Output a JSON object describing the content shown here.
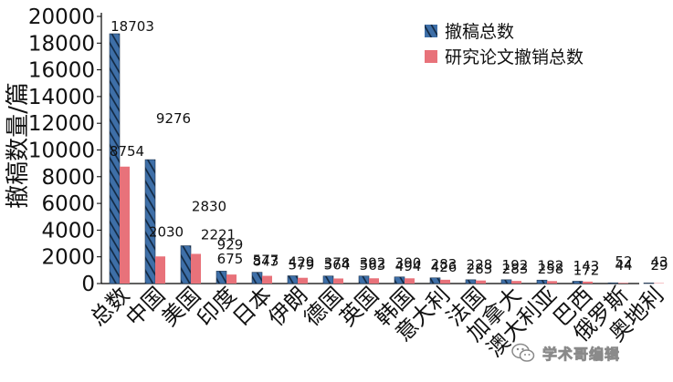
{
  "chart_data": {
    "type": "bar",
    "ylabel": "撤稿数量/篇",
    "ylim": [
      0,
      20000
    ],
    "yticks": [
      "0",
      "2000",
      "4000",
      "6000",
      "8000",
      "10000",
      "12000",
      "14000",
      "16000",
      "18000",
      "20000"
    ],
    "categories": [
      "总数",
      "中国",
      "美国",
      "印度",
      "日本",
      "伊朗",
      "德国",
      "英国",
      "韩国",
      "意大利",
      "法国",
      "加拿大",
      "澳大利亚",
      "巴西",
      "俄罗斯",
      "奥地利"
    ],
    "series": [
      {
        "name": "撤稿总数",
        "color": "#3e6fa8",
        "pattern": "diagonal-hatch",
        "values": [
          18703,
          9276,
          2830,
          929,
          843,
          579,
          564,
          563,
          494,
          426,
          283,
          283,
          258,
          172,
          52,
          43
        ]
      },
      {
        "name": "研究论文撤销总数",
        "color": "#e8727a",
        "values": [
          8754,
          2030,
          2221,
          675,
          577,
          429,
          378,
          392,
          390,
          283,
          228,
          192,
          182,
          143,
          44,
          29
        ]
      }
    ],
    "legend_position": "top-right",
    "grid": false
  },
  "watermark": {
    "text": "学术哥编辑",
    "icon": "wechat-icon"
  }
}
